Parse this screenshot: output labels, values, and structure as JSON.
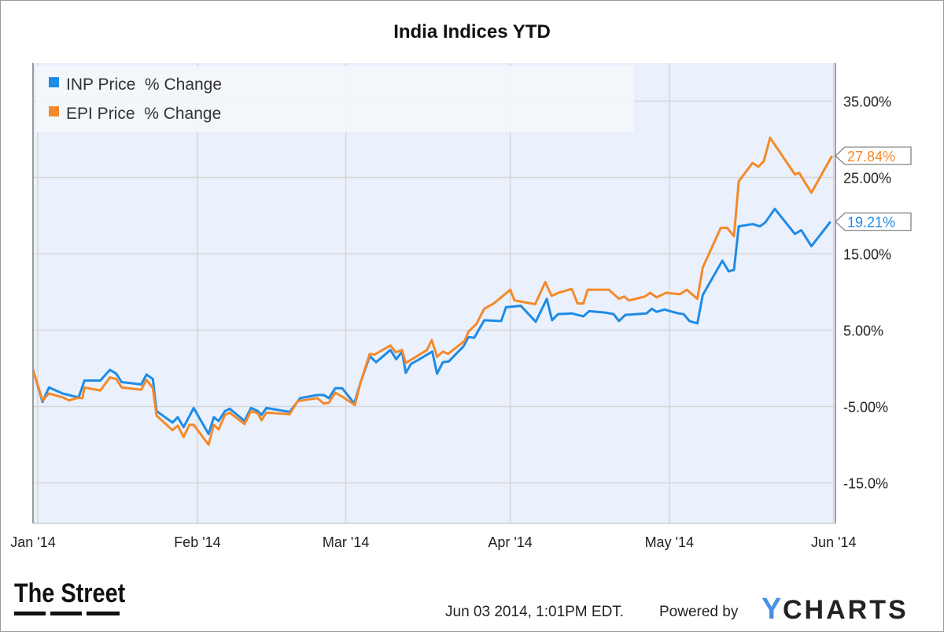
{
  "chart_data": {
    "type": "line",
    "title": "India Indices YTD",
    "xlabel": "",
    "ylabel": "",
    "x_unit": "days since Jan 1 2014",
    "ylim": [
      -20,
      40
    ],
    "y_ticks": [
      {
        "value": 35,
        "label": "35.00%"
      },
      {
        "value": 25,
        "label": "25.00%"
      },
      {
        "value": 15,
        "label": "15.00%"
      },
      {
        "value": 5,
        "label": "5.00%"
      },
      {
        "value": -5,
        "label": "-5.00%"
      },
      {
        "value": -15,
        "label": "-15.0%"
      }
    ],
    "x_ticks": [
      {
        "value": 0,
        "label": "Jan '14"
      },
      {
        "value": 31,
        "label": "Feb '14"
      },
      {
        "value": 59,
        "label": "Mar '14"
      },
      {
        "value": 90,
        "label": "Apr '14"
      },
      {
        "value": 120,
        "label": "May '14"
      },
      {
        "value": 151,
        "label": "Jun '14"
      }
    ],
    "grid": true,
    "legend_position": "top-left",
    "series": [
      {
        "name": "INP Price  % Change",
        "color": "#1f8be6",
        "end_label": "19.21%",
        "points": [
          [
            0,
            -0.2
          ],
          [
            1.8,
            -4.4
          ],
          [
            3.0,
            -2.5
          ],
          [
            5.6,
            -3.3
          ],
          [
            8.6,
            -3.8
          ],
          [
            9.7,
            -1.6
          ],
          [
            12.7,
            -1.6
          ],
          [
            14.5,
            -0.2
          ],
          [
            15.7,
            -0.7
          ],
          [
            16.7,
            -1.8
          ],
          [
            20.4,
            -2.1
          ],
          [
            21.4,
            -0.8
          ],
          [
            22.6,
            -1.4
          ],
          [
            23.3,
            -5.6
          ],
          [
            26.3,
            -7.1
          ],
          [
            27.3,
            -6.4
          ],
          [
            28.4,
            -7.7
          ],
          [
            30.3,
            -5.2
          ],
          [
            33.1,
            -8.6
          ],
          [
            34.1,
            -6.4
          ],
          [
            35.0,
            -6.9
          ],
          [
            36.2,
            -5.6
          ],
          [
            37.1,
            -5.3
          ],
          [
            39.9,
            -6.9
          ],
          [
            41.1,
            -5.2
          ],
          [
            42.4,
            -5.6
          ],
          [
            43.1,
            -6.1
          ],
          [
            44.0,
            -5.2
          ],
          [
            48.4,
            -5.7
          ],
          [
            50.4,
            -3.9
          ],
          [
            53.6,
            -3.5
          ],
          [
            54.8,
            -3.5
          ],
          [
            55.8,
            -3.9
          ],
          [
            57.0,
            -2.6
          ],
          [
            58.3,
            -2.6
          ],
          [
            60.6,
            -4.6
          ],
          [
            61.7,
            -2.0
          ],
          [
            63.5,
            1.6
          ],
          [
            64.7,
            0.8
          ],
          [
            67.4,
            2.4
          ],
          [
            68.5,
            1.2
          ],
          [
            69.6,
            2.2
          ],
          [
            70.3,
            -0.6
          ],
          [
            71.3,
            0.6
          ],
          [
            72.4,
            1.0
          ],
          [
            75.3,
            2.2
          ],
          [
            76.2,
            -0.7
          ],
          [
            77.3,
            0.8
          ],
          [
            78.4,
            0.9
          ],
          [
            81.2,
            2.9
          ],
          [
            82.1,
            4.1
          ],
          [
            83.2,
            4.0
          ],
          [
            85.1,
            6.3
          ],
          [
            88.3,
            6.2
          ],
          [
            89.2,
            8.0
          ],
          [
            92.0,
            8.2
          ],
          [
            94.8,
            6.1
          ],
          [
            96.9,
            9.1
          ],
          [
            97.9,
            6.3
          ],
          [
            99.0,
            7.1
          ],
          [
            101.6,
            7.2
          ],
          [
            103.8,
            6.8
          ],
          [
            104.9,
            7.5
          ],
          [
            108.0,
            7.3
          ],
          [
            109.5,
            7.1
          ],
          [
            110.5,
            6.2
          ],
          [
            111.7,
            7.0
          ],
          [
            115.7,
            7.2
          ],
          [
            116.7,
            7.8
          ],
          [
            117.6,
            7.4
          ],
          [
            119.1,
            7.7
          ],
          [
            121.7,
            7.2
          ],
          [
            122.7,
            7.1
          ],
          [
            123.8,
            6.2
          ],
          [
            125.3,
            5.9
          ],
          [
            126.3,
            9.6
          ],
          [
            130.0,
            14.1
          ],
          [
            131.2,
            12.7
          ],
          [
            132.2,
            12.9
          ],
          [
            133.1,
            18.6
          ],
          [
            135.7,
            18.9
          ],
          [
            137.1,
            18.6
          ],
          [
            138.1,
            19.1
          ],
          [
            139.9,
            20.9
          ],
          [
            143.7,
            17.6
          ],
          [
            144.9,
            18.1
          ],
          [
            146.8,
            16.0
          ],
          [
            150.4,
            19.21
          ]
        ]
      },
      {
        "name": "EPI Price  % Change",
        "color": "#f5892a",
        "end_label": "27.84%",
        "points": [
          [
            0,
            -0.2
          ],
          [
            1.8,
            -4.2
          ],
          [
            3.0,
            -3.3
          ],
          [
            5.6,
            -3.8
          ],
          [
            6.8,
            -4.2
          ],
          [
            8.3,
            -3.9
          ],
          [
            9.3,
            -3.9
          ],
          [
            9.7,
            -2.5
          ],
          [
            12.7,
            -2.9
          ],
          [
            14.5,
            -1.2
          ],
          [
            15.7,
            -1.4
          ],
          [
            16.7,
            -2.5
          ],
          [
            20.4,
            -2.8
          ],
          [
            21.4,
            -1.5
          ],
          [
            22.6,
            -2.6
          ],
          [
            23.3,
            -6.2
          ],
          [
            26.3,
            -8.1
          ],
          [
            27.3,
            -7.5
          ],
          [
            28.4,
            -9.0
          ],
          [
            29.5,
            -7.4
          ],
          [
            30.3,
            -7.4
          ],
          [
            33.1,
            -10.0
          ],
          [
            34.1,
            -7.4
          ],
          [
            35.0,
            -8.0
          ],
          [
            36.2,
            -6.1
          ],
          [
            37.1,
            -5.8
          ],
          [
            39.9,
            -7.3
          ],
          [
            41.1,
            -5.6
          ],
          [
            42.4,
            -5.9
          ],
          [
            43.1,
            -6.8
          ],
          [
            44.0,
            -5.8
          ],
          [
            48.4,
            -6.0
          ],
          [
            49.9,
            -4.3
          ],
          [
            53.6,
            -3.9
          ],
          [
            54.8,
            -4.6
          ],
          [
            55.8,
            -4.5
          ],
          [
            57.0,
            -3.2
          ],
          [
            58.3,
            -3.7
          ],
          [
            60.7,
            -4.8
          ],
          [
            61.7,
            -2.0
          ],
          [
            63.5,
            1.9
          ],
          [
            64.4,
            1.8
          ],
          [
            67.4,
            3.0
          ],
          [
            68.4,
            2.1
          ],
          [
            69.6,
            2.4
          ],
          [
            70.3,
            0.7
          ],
          [
            74.3,
            2.4
          ],
          [
            75.2,
            3.7
          ],
          [
            76.2,
            1.5
          ],
          [
            77.3,
            2.2
          ],
          [
            78.3,
            1.9
          ],
          [
            81.4,
            3.6
          ],
          [
            82.1,
            4.8
          ],
          [
            83.6,
            5.8
          ],
          [
            85.1,
            7.8
          ],
          [
            86.9,
            8.5
          ],
          [
            90.0,
            10.3
          ],
          [
            90.8,
            8.9
          ],
          [
            94.7,
            8.4
          ],
          [
            96.6,
            11.3
          ],
          [
            97.8,
            9.5
          ],
          [
            99.1,
            9.9
          ],
          [
            101.6,
            10.4
          ],
          [
            102.7,
            8.5
          ],
          [
            103.8,
            8.5
          ],
          [
            104.6,
            10.3
          ],
          [
            108.6,
            10.3
          ],
          [
            110.5,
            9.1
          ],
          [
            111.5,
            9.4
          ],
          [
            112.4,
            8.9
          ],
          [
            115.4,
            9.4
          ],
          [
            116.4,
            9.9
          ],
          [
            117.6,
            9.3
          ],
          [
            119.4,
            9.9
          ],
          [
            122.0,
            9.7
          ],
          [
            123.3,
            10.3
          ],
          [
            125.3,
            9.1
          ],
          [
            126.3,
            13.2
          ],
          [
            129.7,
            18.4
          ],
          [
            130.9,
            18.4
          ],
          [
            132.2,
            17.3
          ],
          [
            133.1,
            24.5
          ],
          [
            135.7,
            26.9
          ],
          [
            136.8,
            26.4
          ],
          [
            137.8,
            27.1
          ],
          [
            139.0,
            30.2
          ],
          [
            143.7,
            25.4
          ],
          [
            144.5,
            25.6
          ],
          [
            146.8,
            23.0
          ],
          [
            150.7,
            27.84
          ]
        ]
      }
    ]
  },
  "footer": {
    "timestamp": "Jun 03 2014, 1:01PM EDT.",
    "powered_by": "Powered by",
    "ycharts_logo": "YCHARTS",
    "thestreet_logo": "The Street"
  }
}
